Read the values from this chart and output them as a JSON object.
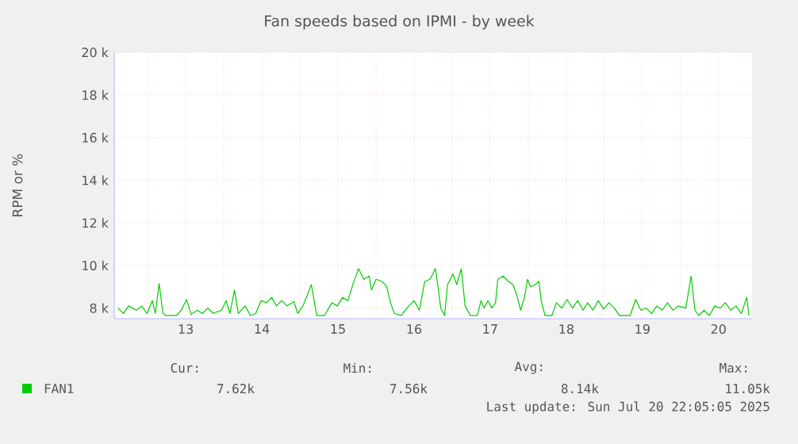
{
  "chart_data": {
    "type": "line",
    "title": "Fan speeds based on IPMI - by week",
    "ylabel": "RPM or %",
    "xlim": [
      12.06,
      20.44
    ],
    "xticks": [
      {
        "value": 12.5,
        "label": null
      },
      13,
      {
        "value": 13.5,
        "label": null
      },
      14,
      {
        "value": 14.5,
        "label": null
      },
      15,
      {
        "value": 15.5,
        "label": null
      },
      16,
      {
        "value": 16.5,
        "label": null
      },
      17,
      {
        "value": 17.5,
        "label": null
      },
      18,
      {
        "value": 18.5,
        "label": null
      },
      19,
      {
        "value": 19.5,
        "label": null
      },
      20
    ],
    "ylim": [
      7500,
      20000
    ],
    "yticks": [
      {
        "value": 8000,
        "label": "8 k"
      },
      {
        "value": 10000,
        "label": "10 k"
      },
      {
        "value": 12000,
        "label": "12 k"
      },
      {
        "value": 14000,
        "label": "14 k"
      },
      {
        "value": 16000,
        "label": "16 k"
      },
      {
        "value": 18000,
        "label": "18 k"
      },
      {
        "value": 20000,
        "label": "20 k"
      }
    ],
    "grid": true,
    "legend": "bottom",
    "marker": "none",
    "line_style": "solid",
    "series": [
      {
        "name": "FAN1",
        "color": "#00cc00",
        "x": [
          12.11,
          12.18,
          12.25,
          12.35,
          12.42,
          12.49,
          12.56,
          12.6,
          12.65,
          12.7,
          12.74,
          12.88,
          12.94,
          13.01,
          13.07,
          13.15,
          13.22,
          13.29,
          13.36,
          13.47,
          13.53,
          13.58,
          13.64,
          13.69,
          13.78,
          13.85,
          13.92,
          13.99,
          14.06,
          14.13,
          14.19,
          14.26,
          14.33,
          14.42,
          14.47,
          14.54,
          14.65,
          14.72,
          14.82,
          14.92,
          14.99,
          15.06,
          15.13,
          15.2,
          15.27,
          15.34,
          15.41,
          15.44,
          15.5,
          15.58,
          15.64,
          15.69,
          15.74,
          15.83,
          15.93,
          16.0,
          16.07,
          16.14,
          16.21,
          16.28,
          16.31,
          16.35,
          16.4,
          16.44,
          16.51,
          16.56,
          16.62,
          16.67,
          16.74,
          16.83,
          16.88,
          16.92,
          16.97,
          17.02,
          17.07,
          17.1,
          17.17,
          17.24,
          17.3,
          17.35,
          17.4,
          17.45,
          17.49,
          17.53,
          17.59,
          17.64,
          17.67,
          17.72,
          17.81,
          17.87,
          17.94,
          18.01,
          18.08,
          18.15,
          18.22,
          18.28,
          18.35,
          18.42,
          18.49,
          18.56,
          18.63,
          18.7,
          18.84,
          18.91,
          18.98,
          19.05,
          19.12,
          19.19,
          19.26,
          19.33,
          19.4,
          19.47,
          19.57,
          19.64,
          19.69,
          19.74,
          19.81,
          19.88,
          19.95,
          20.02,
          20.09,
          20.16,
          20.23,
          20.3,
          20.37,
          20.4
        ],
        "values": [
          8000,
          7750,
          8100,
          7900,
          8100,
          7750,
          8350,
          7750,
          9150,
          7750,
          7650,
          7650,
          7900,
          8400,
          7700,
          7900,
          7750,
          8000,
          7750,
          7900,
          8350,
          7750,
          8850,
          7750,
          8100,
          7650,
          7750,
          8350,
          8250,
          8500,
          8100,
          8350,
          8100,
          8300,
          7750,
          8100,
          9100,
          7650,
          7650,
          8250,
          8100,
          8500,
          8350,
          9150,
          9850,
          9350,
          9500,
          8850,
          9350,
          9250,
          9000,
          8250,
          7750,
          7650,
          8100,
          8350,
          7900,
          9250,
          9350,
          9850,
          9100,
          8000,
          7650,
          9100,
          9600,
          9100,
          9850,
          8100,
          7650,
          7650,
          8350,
          8000,
          8350,
          8000,
          8250,
          9350,
          9500,
          9250,
          9100,
          8600,
          7900,
          8500,
          9350,
          9000,
          9100,
          9250,
          8350,
          7650,
          7650,
          8250,
          8000,
          8400,
          8000,
          8350,
          7900,
          8250,
          7900,
          8350,
          7950,
          8250,
          8000,
          7650,
          7650,
          8400,
          7900,
          8000,
          7750,
          8100,
          7900,
          8250,
          7900,
          8100,
          8000,
          9500,
          7900,
          7650,
          7900,
          7650,
          8100,
          8000,
          8250,
          7900,
          8100,
          7750,
          8500,
          7650
        ]
      }
    ],
    "annotations": [
      "Cur:",
      "Min:",
      "Avg:",
      "Max:",
      "7.62k",
      "7.56k",
      "8.14k",
      "11.05k",
      "Last update: Sun Jul 20 22:05:05 2025"
    ]
  }
}
